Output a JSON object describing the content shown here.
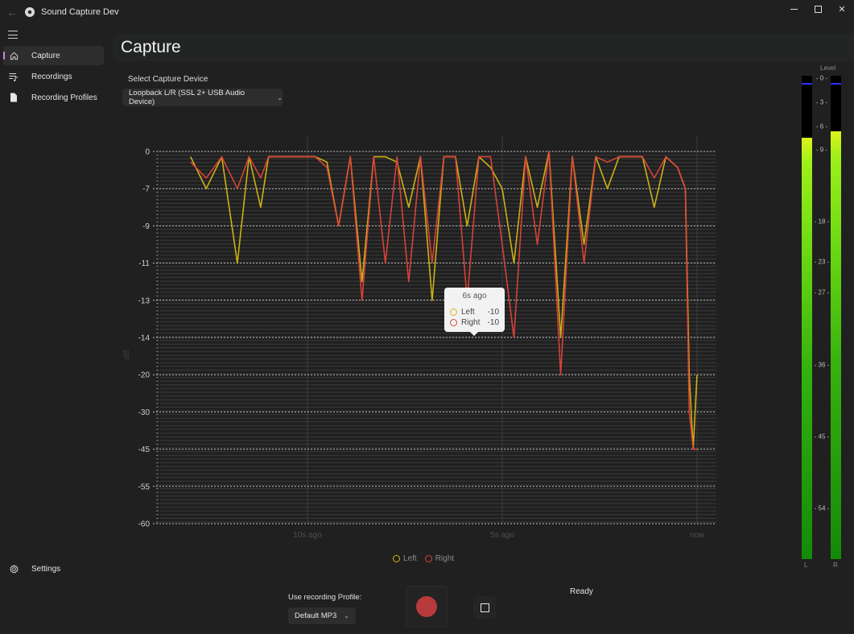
{
  "window": {
    "title": "Sound Capture Dev",
    "controls": {
      "minimize": "minimize",
      "maximize": "maximize",
      "close": "✕"
    },
    "back_icon": "←"
  },
  "sidebar": {
    "items": [
      {
        "label": "Capture",
        "icon": "home-icon",
        "active": true
      },
      {
        "label": "Recordings",
        "icon": "playlist-icon",
        "active": false
      },
      {
        "label": "Recording Profiles",
        "icon": "document-icon",
        "active": false
      }
    ],
    "footer": {
      "label": "Settings",
      "icon": "gear-icon"
    }
  },
  "page": {
    "title": "Capture",
    "device_label": "Select Capture Device",
    "device_value": "Loopback L/R (SSL 2+ USB Audio Device)",
    "profile_label": "Use recording Profile:",
    "profile_value": "Default MP3",
    "status": "Ready"
  },
  "tooltip": {
    "title": "6s ago",
    "rows": [
      {
        "name": "Left",
        "value": "-10",
        "color": "#d4b813"
      },
      {
        "name": "Right",
        "value": "-10",
        "color": "#e0433a"
      }
    ]
  },
  "legend": [
    {
      "name": "Left",
      "color": "#d4b813"
    },
    {
      "name": "Right",
      "color": "#e0433a"
    }
  ],
  "meters": {
    "title": "Level",
    "scale": [
      "- 0 -",
      "- 3 -",
      "- 6 -",
      "- 9 -",
      "- 18 -",
      "- 23 -",
      "- 27 -",
      "- 36 -",
      "- 45 -",
      "- 54 -"
    ],
    "channels": [
      {
        "label": "L",
        "fill_pct": 87.2,
        "peak_pct": 98.2
      },
      {
        "label": "R",
        "fill_pct": 88.5,
        "peak_pct": 98.2
      }
    ]
  },
  "chart_data": {
    "type": "line",
    "title": "",
    "xlabel": "",
    "ylabel": "dB",
    "y_tick_labels": [
      "0",
      "-7",
      "-9",
      "-11",
      "-13",
      "-14",
      "-20",
      "-30",
      "-45",
      "-55",
      "-60"
    ],
    "x_tick_labels": [
      "10s ago",
      "5s ago",
      "now"
    ],
    "x_tick_seconds_ago": [
      10,
      5,
      0
    ],
    "grid": true,
    "legend_position": "bottom",
    "colors": {
      "Left": "#d4b813",
      "Right": "#e0433a"
    },
    "x": [
      13.0,
      12.6,
      12.2,
      11.8,
      11.5,
      11.2,
      11.0,
      10.7,
      10.4,
      10.1,
      9.8,
      9.5,
      9.2,
      8.9,
      8.6,
      8.3,
      8.0,
      7.7,
      7.4,
      7.1,
      6.8,
      6.5,
      6.2,
      5.9,
      5.6,
      5.3,
      5.0,
      4.7,
      4.4,
      4.1,
      3.8,
      3.5,
      3.2,
      2.9,
      2.6,
      2.3,
      2.0,
      1.7,
      1.4,
      1.1,
      0.8,
      0.5,
      0.3,
      0.2,
      0.1,
      0.0
    ],
    "series": [
      {
        "name": "Left",
        "values": [
          -1,
          -7,
          -1,
          -11,
          -1,
          -8,
          -1,
          -1,
          -1,
          -1,
          -1,
          -2,
          -9,
          -1,
          -12,
          -1,
          -1,
          -2,
          -8,
          -1,
          -13,
          -1,
          -1,
          -9,
          -1,
          -3,
          -7,
          -11,
          -1,
          -8,
          0,
          -14,
          -1,
          -10,
          -1,
          -7,
          -1,
          -1,
          -1,
          -8,
          -1,
          -3,
          -7,
          -20,
          -45,
          -20
        ]
      },
      {
        "name": "Right",
        "values": [
          -2,
          -5,
          -1,
          -7,
          -1,
          -5,
          -1,
          -1,
          -1,
          -1,
          -1,
          -3,
          -9,
          -1,
          -13,
          -1,
          -11,
          -1,
          -12,
          -1,
          -11,
          -1,
          -1,
          -13,
          -1,
          -1,
          -10,
          -14,
          -1,
          -10,
          0,
          -20,
          -1,
          -11,
          -1,
          -2,
          -1,
          -1,
          -1,
          -5,
          -1,
          -3,
          -7,
          -30,
          -45,
          -45
        ]
      }
    ],
    "tooltip": {
      "x_label": "6s ago",
      "Left": -10,
      "Right": -10
    }
  }
}
